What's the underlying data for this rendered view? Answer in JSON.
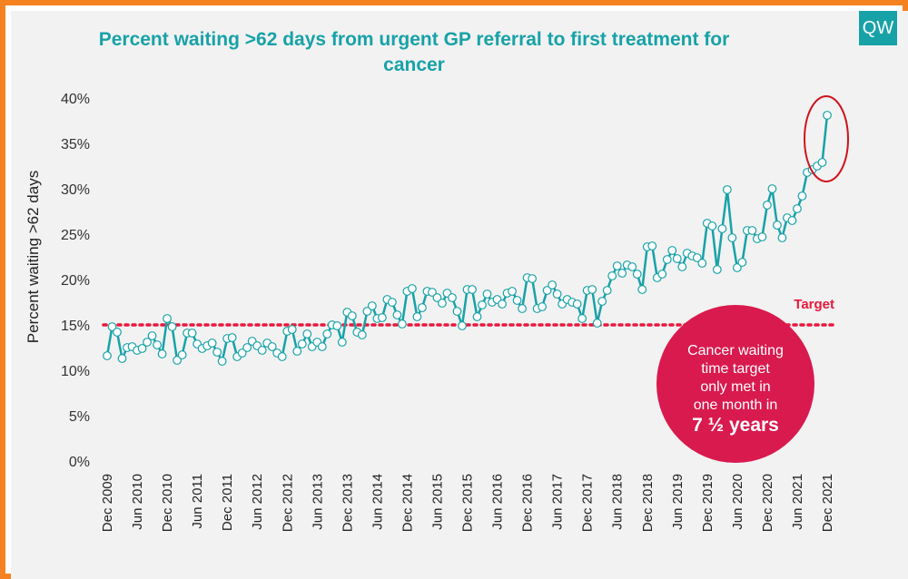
{
  "logo_text": "QW",
  "chart_data": {
    "type": "line",
    "title": "Percent waiting >62 days from urgent GP referral to first treatment for cancer",
    "ylabel": "Percent waiting >62 days",
    "xlabel": "",
    "ylim": [
      0,
      40
    ],
    "yticks": [
      "0%",
      "5%",
      "10%",
      "15%",
      "20%",
      "25%",
      "30%",
      "35%",
      "40%"
    ],
    "xticks": [
      "Dec 2009",
      "Jun 2010",
      "Dec 2010",
      "Jun 2011",
      "Dec 2011",
      "Jun 2012",
      "Dec 2012",
      "Jun 2013",
      "Dec 2013",
      "Jun 2014",
      "Dec 2014",
      "Jun 2015",
      "Dec 2015",
      "Jun 2016",
      "Dec 2016",
      "Jun 2017",
      "Dec 2017",
      "Jun 2018",
      "Dec 2018",
      "Jun 2019",
      "Dec 2019",
      "Jun 2020",
      "Dec 2020",
      "Jun 2021",
      "Dec 2021"
    ],
    "grid": false,
    "series": [
      {
        "values": [
          11.6,
          14.8,
          14.2,
          11.3,
          12.5,
          12.6,
          12.2,
          12.4,
          13.1,
          13.8,
          12.8,
          11.8,
          15.7,
          14.8,
          11.1,
          11.7,
          14.1,
          14.1,
          12.9,
          12.4,
          12.7,
          13.0,
          12.0,
          11.0,
          13.5,
          13.6,
          11.5,
          11.9,
          12.5,
          13.2,
          12.7,
          12.2,
          13.0,
          12.6,
          11.9,
          11.5,
          14.3,
          14.5,
          12.1,
          12.9,
          14.0,
          12.6,
          13.1,
          12.6,
          14.0,
          15.0,
          14.9,
          13.1,
          16.4,
          16.0,
          14.2,
          13.9,
          16.5,
          17.1,
          15.7,
          15.8,
          17.8,
          17.5,
          16.1,
          15.1,
          18.7,
          19.0,
          15.9,
          16.9,
          18.7,
          18.6,
          18.0,
          17.4,
          18.5,
          18.0,
          16.5,
          14.9,
          18.9,
          18.9,
          15.9,
          17.2,
          18.4,
          17.5,
          17.8,
          17.3,
          18.5,
          18.7,
          17.7,
          16.8,
          20.2,
          20.1,
          16.8,
          17.0,
          18.8,
          19.4,
          18.4,
          17.3,
          17.8,
          17.5,
          17.3,
          15.7,
          18.8,
          18.9,
          15.2,
          17.6,
          18.8,
          20.4,
          21.5,
          20.7,
          21.6,
          21.4,
          20.6,
          18.9,
          23.6,
          23.7,
          20.2,
          20.6,
          22.2,
          23.2,
          22.3,
          21.4,
          22.9,
          22.6,
          22.4,
          21.8,
          26.2,
          25.9,
          21.1,
          25.6,
          29.9,
          24.6,
          21.3,
          21.9,
          25.4,
          25.4,
          24.5,
          24.7,
          28.2,
          30.0,
          26.0,
          24.6,
          26.8,
          26.5,
          27.8,
          29.2,
          31.8,
          32.1,
          32.5,
          32.9,
          38.1
        ]
      }
    ],
    "target": {
      "value": 15,
      "label": "Target",
      "color": "#e8193c"
    },
    "annotation": {
      "lines": [
        "Cancer waiting",
        "time target",
        "only met in",
        "one month in"
      ],
      "emphasis": "7 ½ years",
      "color": "#d91a4e"
    },
    "colors": {
      "line": "#17a2a8",
      "title": "#17a2a8",
      "frame": "#f58220",
      "highlight_ring": "#d0121b"
    }
  }
}
